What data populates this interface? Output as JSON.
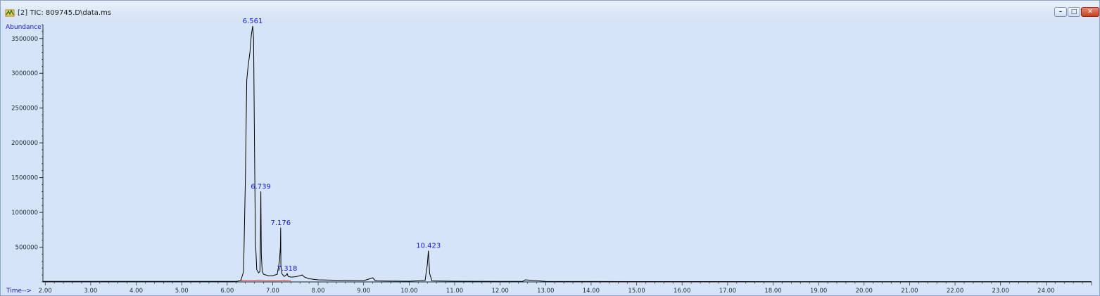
{
  "window": {
    "title": "[2] TIC: 809745.D\\data.ms",
    "controls": {
      "minimize": "–",
      "maximize": "□",
      "close": "✕"
    },
    "icons": {
      "app": "chromatogram-app-icon"
    }
  },
  "chart_data": {
    "type": "line",
    "title": "",
    "ylabel": "Abundance",
    "xlabel": "Time-->",
    "xlim": [
      1.95,
      25.0
    ],
    "ylim": [
      0,
      3700000
    ],
    "x_ticks": [
      "2.00",
      "3.00",
      "4.00",
      "5.00",
      "6.00",
      "7.00",
      "8.00",
      "9.00",
      "10.00",
      "11.00",
      "12.00",
      "13.00",
      "14.00",
      "15.00",
      "16.00",
      "17.00",
      "18.00",
      "19.00",
      "20.00",
      "21.00",
      "22.00",
      "23.00",
      "24.00"
    ],
    "y_ticks": [
      "500000",
      "1000000",
      "1500000",
      "2000000",
      "2500000",
      "3000000",
      "3500000"
    ],
    "peaks": [
      {
        "rt": 6.561,
        "label": "6.561",
        "abundance": 3680000
      },
      {
        "rt": 6.739,
        "label": "6.739",
        "abundance": 1300000
      },
      {
        "rt": 7.176,
        "label": "7.176",
        "abundance": 780000
      },
      {
        "rt": 7.318,
        "label": "7.318",
        "abundance": 120000
      },
      {
        "rt": 10.423,
        "label": "10.423",
        "abundance": 450000
      }
    ],
    "series": [
      {
        "x": [
          1.95,
          6.2,
          6.3,
          6.36,
          6.4,
          6.43,
          6.46,
          6.5,
          6.53,
          6.561,
          6.58,
          6.6,
          6.62,
          6.65,
          6.69,
          6.72,
          6.73,
          6.739,
          6.75,
          6.77,
          6.8,
          6.9,
          7.0,
          7.1,
          7.15,
          7.17,
          7.176,
          7.18,
          7.2,
          7.25,
          7.3,
          7.318,
          7.34,
          7.4,
          7.5,
          7.6,
          7.65,
          7.7,
          7.8,
          8.0,
          8.5,
          9.0,
          9.2,
          9.25,
          9.3,
          9.5,
          10.0,
          10.35,
          10.4,
          10.423,
          10.45,
          10.5,
          11.0,
          12.0,
          12.5,
          12.55,
          13.0,
          14.0,
          15.0,
          16.0,
          17.0,
          18.0,
          19.0,
          20.0,
          21.0,
          22.0,
          23.0,
          24.0,
          25.0
        ],
        "y": [
          8000,
          8000,
          20000,
          150000,
          1500000,
          2900000,
          3100000,
          3300000,
          3550000,
          3680000,
          3500000,
          2000000,
          600000,
          180000,
          130000,
          150000,
          600000,
          1300000,
          400000,
          150000,
          110000,
          90000,
          90000,
          110000,
          300000,
          500000,
          780000,
          250000,
          120000,
          80000,
          100000,
          120000,
          80000,
          70000,
          75000,
          90000,
          100000,
          70000,
          45000,
          30000,
          22000,
          18000,
          60000,
          20000,
          15000,
          12000,
          10000,
          20000,
          250000,
          450000,
          120000,
          15000,
          10000,
          8000,
          9000,
          30000,
          7000,
          6000,
          5000,
          5000,
          5000,
          4500,
          4500,
          4000,
          4000,
          4000,
          4000,
          4000,
          4000
        ]
      }
    ],
    "grid": false,
    "legend": "none"
  }
}
